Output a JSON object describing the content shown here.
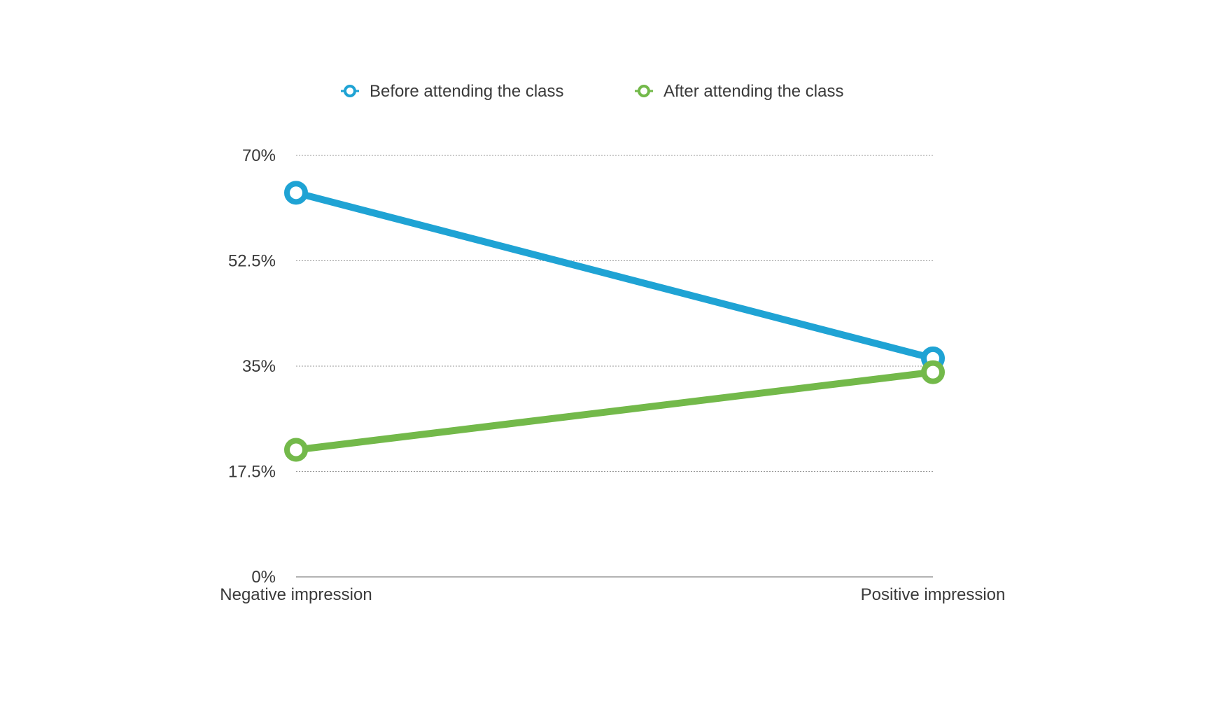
{
  "chart_data": {
    "type": "line",
    "title": "",
    "xlabel": "",
    "ylabel": "",
    "categories": [
      "Negative impression",
      "Positive impression"
    ],
    "series": [
      {
        "name": "Before attending the class",
        "color": "#1fa3d4",
        "values": [
          63.8,
          36.3
        ]
      },
      {
        "name": "After attending the class",
        "color": "#73b94a",
        "values": [
          21.1,
          34.0
        ]
      }
    ],
    "ylim": [
      0,
      70
    ],
    "yticks": [
      0,
      17.5,
      35,
      52.5,
      70
    ],
    "ytick_labels": [
      "0%",
      "17.5%",
      "35%",
      "52.5%",
      "70%"
    ],
    "grid": true,
    "legend_position": "top-center"
  }
}
